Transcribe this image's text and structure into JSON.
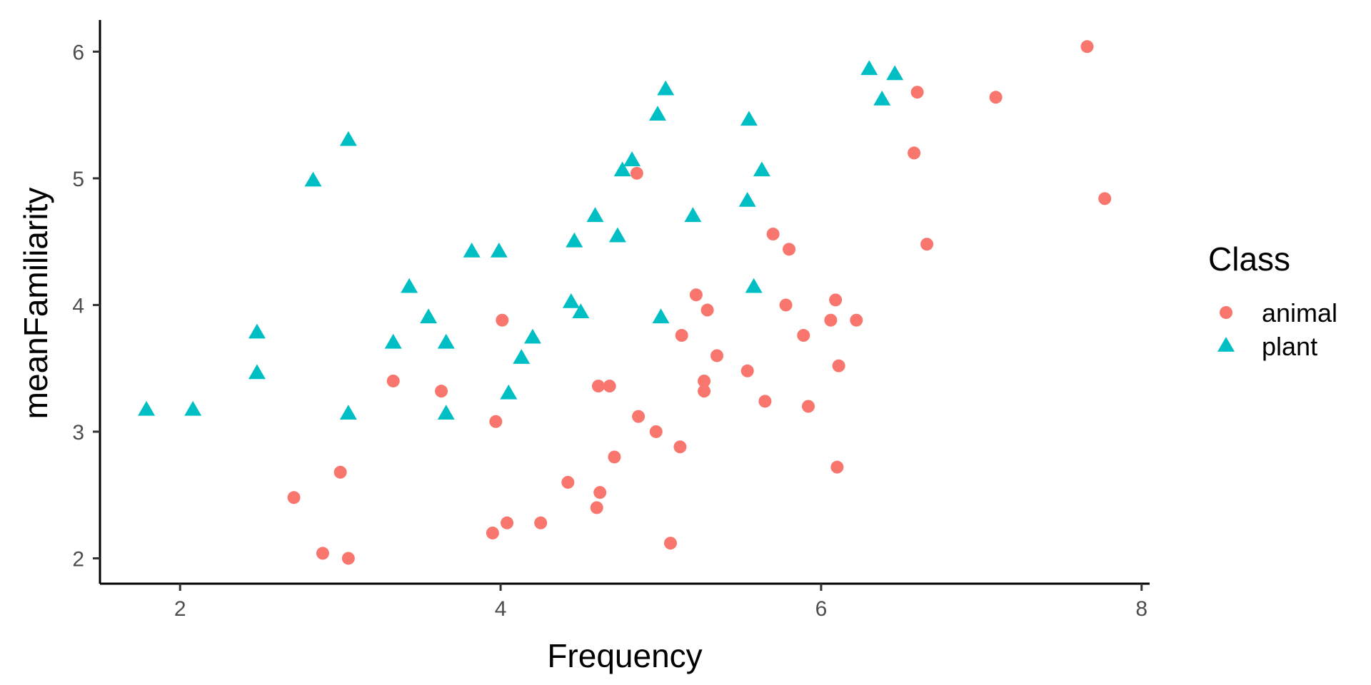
{
  "chart_data": {
    "type": "scatter",
    "xlabel": "Frequency",
    "ylabel": "meanFamiliarity",
    "xlim": [
      1.5,
      8.05
    ],
    "ylim": [
      1.8,
      6.25
    ],
    "xticks": [
      "2",
      "4",
      "6",
      "8"
    ],
    "yticks": [
      "2",
      "3",
      "4",
      "5",
      "6"
    ],
    "xtick_values": [
      2,
      4,
      6,
      8
    ],
    "ytick_values": [
      2,
      3,
      4,
      5,
      6
    ],
    "grid": false,
    "legend": {
      "title": "Class",
      "position": "right"
    },
    "series": [
      {
        "name": "animal",
        "shape": "circle",
        "color": "#F8766D",
        "points": [
          [
            2.71,
            2.48
          ],
          [
            2.89,
            2.04
          ],
          [
            3.0,
            2.68
          ],
          [
            3.05,
            2.0
          ],
          [
            3.33,
            3.4
          ],
          [
            3.63,
            3.32
          ],
          [
            3.95,
            2.2
          ],
          [
            3.97,
            3.08
          ],
          [
            4.01,
            3.88
          ],
          [
            4.04,
            2.28
          ],
          [
            4.25,
            2.28
          ],
          [
            4.42,
            2.6
          ],
          [
            4.6,
            2.4
          ],
          [
            4.61,
            3.36
          ],
          [
            4.62,
            2.52
          ],
          [
            4.68,
            3.36
          ],
          [
            4.71,
            2.8
          ],
          [
            4.85,
            5.04
          ],
          [
            4.86,
            3.12
          ],
          [
            4.97,
            3.0
          ],
          [
            5.06,
            2.12
          ],
          [
            5.13,
            3.76
          ],
          [
            5.12,
            2.88
          ],
          [
            5.22,
            4.08
          ],
          [
            5.27,
            3.4
          ],
          [
            5.27,
            3.32
          ],
          [
            5.29,
            3.96
          ],
          [
            5.35,
            3.6
          ],
          [
            5.54,
            3.48
          ],
          [
            5.65,
            3.24
          ],
          [
            5.7,
            4.56
          ],
          [
            5.78,
            4.0
          ],
          [
            5.8,
            4.44
          ],
          [
            5.89,
            3.76
          ],
          [
            5.92,
            3.2
          ],
          [
            6.06,
            3.88
          ],
          [
            6.09,
            4.04
          ],
          [
            6.1,
            2.72
          ],
          [
            6.11,
            3.52
          ],
          [
            6.22,
            3.88
          ],
          [
            6.58,
            5.2
          ],
          [
            6.6,
            5.68
          ],
          [
            6.66,
            4.48
          ],
          [
            7.09,
            5.64
          ],
          [
            7.66,
            6.04
          ],
          [
            7.77,
            4.84
          ]
        ]
      },
      {
        "name": "plant",
        "shape": "triangle",
        "color": "#00BFC4",
        "points": [
          [
            1.79,
            3.17
          ],
          [
            2.08,
            3.17
          ],
          [
            2.48,
            3.78
          ],
          [
            2.48,
            3.46
          ],
          [
            2.83,
            4.98
          ],
          [
            3.05,
            5.3
          ],
          [
            3.05,
            3.14
          ],
          [
            3.33,
            3.7
          ],
          [
            3.43,
            4.14
          ],
          [
            3.55,
            3.9
          ],
          [
            3.66,
            3.7
          ],
          [
            3.66,
            3.14
          ],
          [
            3.82,
            4.42
          ],
          [
            3.99,
            4.42
          ],
          [
            4.05,
            3.3
          ],
          [
            4.13,
            3.58
          ],
          [
            4.2,
            3.74
          ],
          [
            4.44,
            4.02
          ],
          [
            4.46,
            4.5
          ],
          [
            4.5,
            3.94
          ],
          [
            4.59,
            4.7
          ],
          [
            4.73,
            4.54
          ],
          [
            4.76,
            5.06
          ],
          [
            4.82,
            5.14
          ],
          [
            4.98,
            5.5
          ],
          [
            5.0,
            3.9
          ],
          [
            5.03,
            5.7
          ],
          [
            5.2,
            4.7
          ],
          [
            5.54,
            4.82
          ],
          [
            5.55,
            5.46
          ],
          [
            5.58,
            4.14
          ],
          [
            5.63,
            5.06
          ],
          [
            6.3,
            5.86
          ],
          [
            6.38,
            5.62
          ],
          [
            6.46,
            5.82
          ]
        ]
      }
    ]
  }
}
